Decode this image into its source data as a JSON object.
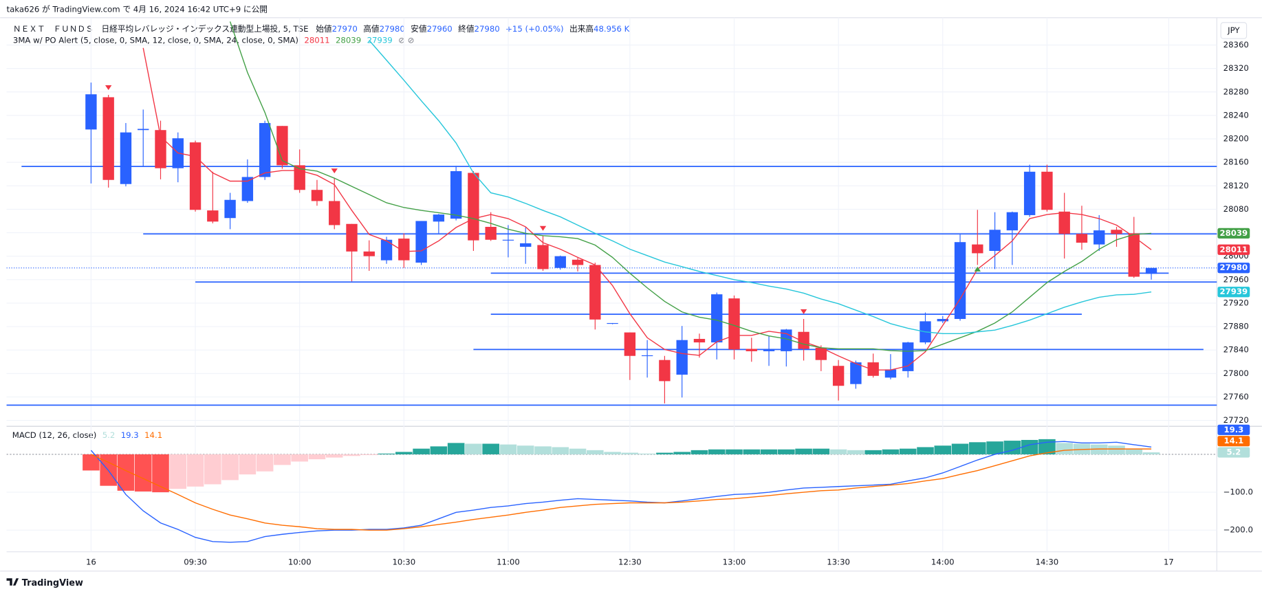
{
  "header": {
    "published": "taka626 が TradingView.com で 4月 16, 2024 16:42 UTC+9 に公開"
  },
  "footer": {
    "brand": "TradingView"
  },
  "chart_data": [
    {
      "type": "candlestick",
      "symbol": "ＮＥＸＴ　ＦＵＮＤＳ　日経平均レバレッジ・インデックス連動型上場投, 5, TSE",
      "ohlc_labels": [
        "始値",
        "高値",
        "安値",
        "終値"
      ],
      "change": "+15 (+0.05%)",
      "volume_label": "出来高",
      "volume": "48.956 K",
      "indicator": "3MA w/ PO Alert (5, close, 0, SMA, 12, close, 0, SMA, 24, close, 0, SMA)",
      "currency": "JPY",
      "up_color": "#2962ff",
      "down_color": "#f23645",
      "level_color": "#2962ff",
      "grid": true,
      "categories": [
        "16",
        null,
        null,
        null,
        null,
        null,
        "09:30",
        null,
        null,
        null,
        null,
        null,
        "10:00",
        null,
        null,
        null,
        null,
        null,
        "10:30",
        null,
        null,
        null,
        null,
        null,
        "11:00",
        null,
        null,
        null,
        null,
        null,
        null,
        "12:30",
        null,
        null,
        null,
        null,
        null,
        "13:00",
        null,
        null,
        null,
        null,
        null,
        "13:30",
        null,
        null,
        null,
        null,
        null,
        "14:00",
        null,
        null,
        null,
        null,
        null,
        "14:30",
        null,
        null,
        null,
        null,
        null,
        null,
        "17"
      ],
      "open": [
        28216,
        28271,
        28123,
        28215,
        28215,
        28150,
        28194,
        28078,
        28065,
        28094,
        28135,
        28222,
        28155,
        28113,
        28094,
        28055,
        28008,
        27993,
        28030,
        27989,
        28059,
        28064,
        28142,
        28050,
        28027,
        28016,
        28019,
        27980,
        27994,
        27985,
        27885,
        27870,
        27830,
        27823,
        27798,
        27859,
        27853,
        27928,
        27842,
        27838,
        27838,
        27871,
        27844,
        27813,
        27782,
        27819,
        27793,
        27804,
        27853,
        27889,
        27893,
        28020,
        28009,
        28044,
        28070,
        28144,
        28076,
        28038,
        28020,
        28045,
        28039,
        27970,
        null
      ],
      "high": [
        28296,
        28275,
        28227,
        28250,
        28231,
        28211,
        28197,
        28144,
        28108,
        28165,
        28231,
        28222,
        28182,
        28130,
        28133,
        28055,
        28027,
        28033,
        28039,
        28060,
        28072,
        28154,
        28145,
        28075,
        28053,
        28049,
        28035,
        28001,
        27997,
        27989,
        27886,
        27870,
        27857,
        27830,
        27881,
        27868,
        27938,
        27933,
        27861,
        27864,
        27876,
        27893,
        27848,
        27823,
        27822,
        27834,
        27833,
        27854,
        27904,
        27898,
        28037,
        28079,
        28075,
        28076,
        28156,
        28156,
        28108,
        28086,
        28070,
        28050,
        28067,
        27980,
        null
      ],
      "low": [
        28124,
        28117,
        28119,
        28153,
        28131,
        28126,
        28076,
        28056,
        28046,
        28091,
        28130,
        28149,
        28108,
        28086,
        28046,
        27957,
        27975,
        27987,
        27980,
        27985,
        28039,
        28061,
        28009,
        28026,
        27998,
        27987,
        27975,
        27977,
        27974,
        27875,
        27884,
        27789,
        27793,
        27749,
        27759,
        27827,
        27824,
        27824,
        27820,
        27813,
        27812,
        27822,
        27804,
        27754,
        27774,
        27793,
        27790,
        27793,
        27850,
        27886,
        27890,
        27985,
        27978,
        27985,
        28067,
        28076,
        27996,
        28011,
        28009,
        28016,
        27963,
        27960,
        null
      ],
      "close": [
        28276,
        28130,
        28211,
        28217,
        28150,
        28201,
        28079,
        28059,
        28096,
        28135,
        28227,
        28155,
        28113,
        28094,
        28053,
        28008,
        28000,
        28028,
        27993,
        28060,
        28071,
        28145,
        28027,
        28028,
        28028,
        28022,
        27978,
        28000,
        27985,
        27892,
        27886,
        27830,
        27831,
        27787,
        27857,
        27853,
        27935,
        27841,
        27838,
        27842,
        27875,
        27842,
        27823,
        27779,
        27819,
        27796,
        27807,
        27853,
        27889,
        27893,
        28024,
        28005,
        28045,
        28075,
        28144,
        28079,
        28038,
        28023,
        28044,
        28038,
        27965,
        27980,
        null
      ],
      "series": [
        {
          "color": "#f23645",
          "values": [
            null,
            null,
            null,
            28355,
            28204,
            28176,
            28170,
            28142,
            28128,
            28128,
            28142,
            28146,
            28146,
            28138,
            28122,
            28078,
            28037,
            28026,
            28008,
            28009,
            28026,
            28049,
            28064,
            28071,
            28064,
            28050,
            28023,
            28012,
            27998,
            27985,
            27950,
            27902,
            27861,
            27841,
            27834,
            27831,
            27854,
            27865,
            27865,
            27872,
            27868,
            27854,
            27844,
            27830,
            27817,
            27806,
            27806,
            27813,
            27837,
            27882,
            27927,
            27978,
            28001,
            28026,
            28064,
            28071,
            28074,
            28071,
            28064,
            28053,
            28033,
            28011,
            null
          ]
        },
        {
          "color": "#43a047",
          "values": [
            null,
            null,
            null,
            null,
            null,
            null,
            null,
            null,
            28400,
            28313,
            28245,
            28163,
            28149,
            28145,
            28133,
            28119,
            28105,
            28091,
            28083,
            28078,
            28074,
            28070,
            28064,
            28056,
            28046,
            28039,
            28035,
            28033,
            28030,
            28019,
            27998,
            27971,
            27946,
            27923,
            27905,
            27896,
            27891,
            27882,
            27872,
            27864,
            27859,
            27850,
            27844,
            27842,
            27842,
            27842,
            27839,
            27838,
            27839,
            27850,
            27861,
            27872,
            27886,
            27905,
            27930,
            27955,
            27974,
            27991,
            28012,
            28028,
            28037,
            28039,
            null
          ]
        },
        {
          "color": "#26c6da",
          "values": [
            null,
            null,
            null,
            null,
            null,
            null,
            null,
            null,
            null,
            null,
            null,
            null,
            null,
            null,
            null,
            null,
            28368,
            28334,
            28300,
            28265,
            28231,
            28193,
            28142,
            28108,
            28101,
            28090,
            28078,
            28067,
            28053,
            28039,
            28026,
            28012,
            28001,
            27990,
            27982,
            27974,
            27967,
            27960,
            27955,
            27949,
            27944,
            27937,
            27927,
            27919,
            27908,
            27897,
            27885,
            27877,
            27871,
            27868,
            27868,
            27871,
            27874,
            27882,
            27891,
            27902,
            27913,
            27922,
            27930,
            27934,
            27935,
            27939,
            null
          ]
        }
      ],
      "levels": [
        {
          "value": 28153,
          "from": -4,
          "to": 64.8
        },
        {
          "value": 28038,
          "from": 3,
          "to": 64.8
        },
        {
          "value": 27971,
          "from": 23,
          "to": 62
        },
        {
          "value": 27956,
          "from": 6,
          "to": 64.8
        },
        {
          "value": 27901,
          "from": 23,
          "to": 57
        },
        {
          "value": 27841,
          "from": 22,
          "to": 64
        },
        {
          "value": 27746,
          "from": -4.9,
          "to": 64.8
        }
      ],
      "sell_signals": [
        1,
        14,
        26,
        41
      ],
      "buy_signals": [
        51
      ],
      "sell_color": "#f23645",
      "buy_color": "#43a047",
      "ylim": [
        27710,
        28400
      ],
      "yticks": [
        27720,
        27760,
        27800,
        27840,
        27880,
        27920,
        27960,
        28000,
        28040,
        28080,
        28120,
        28160,
        28200,
        28240,
        28280,
        28320,
        28360
      ]
    },
    {
      "type": "macd",
      "title": "MACD (12, 26, close)",
      "histogram": {
        "values": [
          -42.6,
          -83,
          -96,
          -98,
          -100,
          -91,
          -85,
          -79,
          -68,
          -53,
          -45,
          -28,
          -19,
          -13,
          -8.5,
          -4.3,
          -2,
          2,
          6.4,
          15,
          21,
          30,
          28,
          28,
          26,
          23,
          21,
          19,
          15,
          11,
          6.4,
          4.3,
          2,
          4.3,
          6.4,
          11,
          13,
          13,
          13,
          13,
          13,
          15,
          15,
          13,
          11,
          11,
          13,
          15,
          19,
          23,
          28,
          32,
          34,
          36,
          38,
          40,
          30,
          28,
          26,
          23,
          13,
          5.2,
          null
        ],
        "colors": {
          "grow_above": "#26a69a",
          "fall_above": "#b2dfdb",
          "grow_below": "#ffcdd2",
          "fall_below": "#ff5252"
        }
      },
      "series": [
        {
          "color": "#2962ff",
          "values": [
            10.6,
            -42.6,
            -106,
            -149,
            -181,
            -198,
            -219,
            -230,
            -232,
            -230,
            -217,
            -211,
            -206,
            -202,
            -200,
            -200,
            -198,
            -198,
            -194,
            -187,
            -170,
            -153,
            -147,
            -140,
            -136,
            -130,
            -126,
            -121,
            -117,
            -119,
            -121,
            -123,
            -126,
            -128,
            -123,
            -117,
            -111,
            -106,
            -104,
            -100,
            -94,
            -89,
            -87,
            -85,
            -83,
            -81,
            -79,
            -70,
            -62,
            -49,
            -32,
            -15,
            0,
            10.6,
            25.5,
            32,
            34,
            30,
            30,
            32,
            25.5,
            19.3,
            null
          ]
        },
        {
          "color": "#ff6d00",
          "values": [
            0,
            -21,
            -43,
            -64,
            -85,
            -106,
            -128,
            -145,
            -160,
            -170,
            -181,
            -187,
            -191,
            -196,
            -198,
            -198,
            -200,
            -200,
            -196,
            -191,
            -185,
            -179,
            -172,
            -166,
            -160,
            -153,
            -147,
            -140,
            -136,
            -132,
            -130,
            -128,
            -128,
            -128,
            -126,
            -123,
            -119,
            -117,
            -113,
            -109,
            -104,
            -100,
            -96,
            -94,
            -89,
            -85,
            -81,
            -77,
            -70,
            -64,
            -53,
            -43,
            -30,
            -17,
            -4,
            4,
            10.6,
            12.8,
            14.1,
            14.1,
            14.1,
            14.1,
            null
          ]
        }
      ],
      "zero_line": 0,
      "ylim": [
        -257,
        74
      ],
      "yticks": [
        {
          "value": -100,
          "label": "−100.0"
        },
        {
          "value": -200,
          "label": "−200.0"
        }
      ]
    }
  ]
}
